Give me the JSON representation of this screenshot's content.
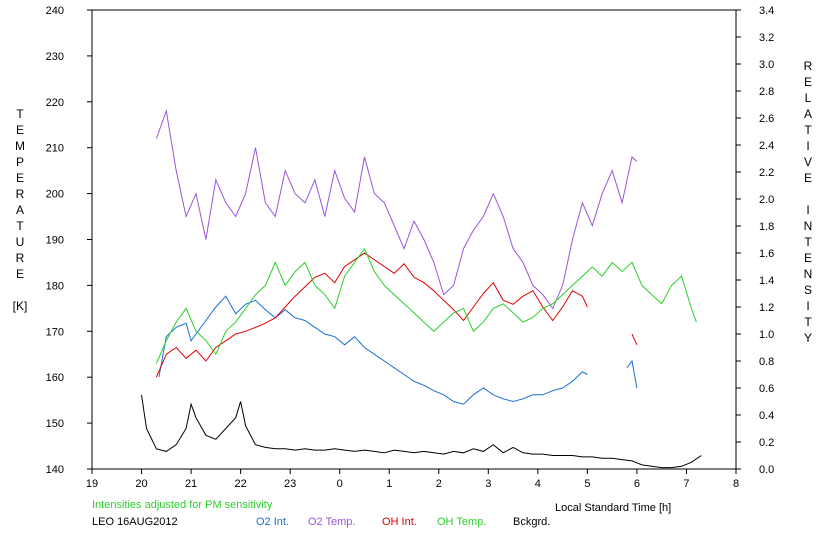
{
  "chart_data": {
    "type": "line",
    "title": "",
    "xlabel": "Local Standard Time [h]",
    "ylabel_left": [
      "T",
      "E",
      "M",
      "P",
      "E",
      "R",
      "A",
      "T",
      "U",
      "R",
      "E",
      "",
      "[K]"
    ],
    "ylabel_right": [
      "R",
      "E",
      "L",
      "A",
      "T",
      "I",
      "V",
      "E",
      "",
      "I",
      "N",
      "T",
      "E",
      "N",
      "S",
      "I",
      "T",
      "Y"
    ],
    "x_ticks": [
      "19",
      "20",
      "21",
      "22",
      "23",
      "0",
      "1",
      "2",
      "3",
      "4",
      "5",
      "6",
      "7",
      "8"
    ],
    "x_range": [
      19,
      32
    ],
    "y_left_ticks": [
      "140",
      "150",
      "160",
      "170",
      "180",
      "190",
      "200",
      "210",
      "220",
      "230",
      "240"
    ],
    "y_left_range": [
      140,
      240
    ],
    "y_right_ticks": [
      "0.0",
      "0.2",
      "0.4",
      "0.6",
      "0.8",
      "1.0",
      "1.2",
      "1.4",
      "1.6",
      "1.8",
      "2.0",
      "2.2",
      "2.4",
      "2.6",
      "2.8",
      "3.0",
      "3.2",
      "3.4"
    ],
    "y_right_range": [
      0.0,
      3.4
    ],
    "note": "Intensities adjusted for PM sensitivity",
    "station": "LEO 16AUG2012",
    "series": [
      {
        "name": "O2 Int.",
        "color": "#1a6fd6",
        "axis": "right",
        "x": [
          20.35,
          20.5,
          20.7,
          20.9,
          21.0,
          21.1,
          21.3,
          21.5,
          21.7,
          21.9,
          22.1,
          22.3,
          22.5,
          22.7,
          22.9,
          23.1,
          23.3,
          23.5,
          23.7,
          23.9,
          24.1,
          24.3,
          24.5,
          24.7,
          24.9,
          25.1,
          25.3,
          25.5,
          25.7,
          25.9,
          26.1,
          26.3,
          26.5,
          26.7,
          26.9,
          27.1,
          27.3,
          27.5,
          27.7,
          27.9,
          28.1,
          28.3,
          28.5,
          28.7,
          28.9,
          29.0
        ],
        "y": [
          0.68,
          0.98,
          1.05,
          1.08,
          0.95,
          1.0,
          1.1,
          1.2,
          1.28,
          1.15,
          1.22,
          1.25,
          1.18,
          1.12,
          1.18,
          1.12,
          1.1,
          1.05,
          1.0,
          0.98,
          0.92,
          0.98,
          0.9,
          0.85,
          0.8,
          0.75,
          0.7,
          0.65,
          0.62,
          0.58,
          0.55,
          0.5,
          0.48,
          0.55,
          0.6,
          0.55,
          0.52,
          0.5,
          0.52,
          0.55,
          0.55,
          0.58,
          0.6,
          0.65,
          0.72,
          0.7
        ]
      },
      {
        "name": "O2 Int. (late)",
        "color": "#1a6fd6",
        "axis": "right",
        "x": [
          29.8,
          29.9,
          30.0
        ],
        "y": [
          0.75,
          0.8,
          0.6
        ]
      },
      {
        "name": "O2 Temp.",
        "color": "#9b55d6",
        "axis": "left",
        "x": [
          20.3,
          20.5,
          20.7,
          20.9,
          21.1,
          21.3,
          21.5,
          21.7,
          21.9,
          22.1,
          22.3,
          22.5,
          22.7,
          22.9,
          23.1,
          23.3,
          23.5,
          23.7,
          23.9,
          24.1,
          24.3,
          24.5,
          24.7,
          24.9,
          25.1,
          25.3,
          25.5,
          25.7,
          25.9,
          26.1,
          26.3,
          26.5,
          26.7,
          26.9,
          27.1,
          27.3,
          27.5,
          27.7,
          27.9,
          28.1,
          28.3,
          28.5,
          28.7,
          28.9,
          29.1,
          29.3,
          29.5,
          29.7,
          29.9,
          30.0
        ],
        "y": [
          212,
          218,
          205,
          195,
          200,
          190,
          203,
          198,
          195,
          200,
          210,
          198,
          195,
          205,
          200,
          198,
          203,
          195,
          205,
          199,
          196,
          208,
          200,
          198,
          193,
          188,
          194,
          190,
          185,
          178,
          180,
          188,
          192,
          195,
          200,
          195,
          188,
          185,
          180,
          178,
          175,
          180,
          190,
          198,
          193,
          200,
          205,
          198,
          208,
          207
        ]
      },
      {
        "name": "OH Int.",
        "color": "#e00000",
        "axis": "right",
        "x": [
          20.3,
          20.5,
          20.7,
          20.9,
          21.1,
          21.3,
          21.5,
          21.7,
          21.9,
          22.1,
          22.3,
          22.5,
          22.7,
          22.9,
          23.1,
          23.3,
          23.5,
          23.7,
          23.9,
          24.1,
          24.3,
          24.5,
          24.7,
          24.9,
          25.1,
          25.3,
          25.5,
          25.7,
          25.9,
          26.1,
          26.3,
          26.5,
          26.7,
          26.9,
          27.1,
          27.3,
          27.5,
          27.7,
          27.9,
          28.1,
          28.3,
          28.5,
          28.7,
          28.9,
          29.0
        ],
        "y": [
          0.68,
          0.85,
          0.9,
          0.82,
          0.88,
          0.8,
          0.9,
          0.95,
          1.0,
          1.02,
          1.05,
          1.08,
          1.12,
          1.2,
          1.28,
          1.35,
          1.42,
          1.45,
          1.38,
          1.5,
          1.55,
          1.6,
          1.55,
          1.5,
          1.45,
          1.52,
          1.42,
          1.38,
          1.32,
          1.25,
          1.18,
          1.1,
          1.2,
          1.3,
          1.38,
          1.25,
          1.22,
          1.28,
          1.32,
          1.2,
          1.1,
          1.2,
          1.32,
          1.28,
          1.2
        ]
      },
      {
        "name": "OH Int. (late)",
        "color": "#e00000",
        "axis": "right",
        "x": [
          29.9,
          30.0
        ],
        "y": [
          1.0,
          0.92
        ]
      },
      {
        "name": "OH Temp.",
        "color": "#2ccf2c",
        "axis": "left",
        "x": [
          20.3,
          20.5,
          20.7,
          20.9,
          21.1,
          21.3,
          21.5,
          21.7,
          21.9,
          22.1,
          22.3,
          22.5,
          22.7,
          22.9,
          23.1,
          23.3,
          23.5,
          23.7,
          23.9,
          24.1,
          24.3,
          24.5,
          24.7,
          24.9,
          25.1,
          25.3,
          25.5,
          25.7,
          25.9,
          26.1,
          26.3,
          26.5,
          26.7,
          26.9,
          27.1,
          27.3,
          27.5,
          27.7,
          27.9,
          28.1,
          28.3,
          28.5,
          28.7,
          28.9,
          29.1,
          29.3,
          29.5,
          29.7,
          29.9,
          30.1,
          30.3,
          30.5,
          30.7,
          30.9,
          31.1,
          31.2
        ],
        "y": [
          163,
          168,
          172,
          175,
          170,
          168,
          165,
          170,
          172,
          175,
          178,
          180,
          185,
          180,
          183,
          185,
          180,
          178,
          175,
          182,
          185,
          188,
          183,
          180,
          178,
          176,
          174,
          172,
          170,
          172,
          174,
          175,
          170,
          172,
          175,
          176,
          174,
          172,
          173,
          175,
          176,
          178,
          180,
          182,
          184,
          182,
          185,
          183,
          185,
          180,
          178,
          176,
          180,
          182,
          175,
          172
        ]
      },
      {
        "name": "Bckgrd.",
        "color": "#000000",
        "axis": "right",
        "x": [
          20.0,
          20.1,
          20.3,
          20.5,
          20.7,
          20.9,
          21.0,
          21.1,
          21.3,
          21.5,
          21.7,
          21.9,
          22.0,
          22.1,
          22.3,
          22.5,
          22.7,
          22.9,
          23.1,
          23.3,
          23.5,
          23.7,
          23.9,
          24.1,
          24.3,
          24.5,
          24.7,
          24.9,
          25.1,
          25.3,
          25.5,
          25.7,
          25.9,
          26.1,
          26.3,
          26.5,
          26.7,
          26.9,
          27.1,
          27.3,
          27.5,
          27.7,
          27.9,
          28.1,
          28.3,
          28.5,
          28.7,
          28.9,
          29.1,
          29.3,
          29.5,
          29.7,
          29.9,
          30.1,
          30.3,
          30.5,
          30.7,
          30.9,
          31.1,
          31.3
        ],
        "y": [
          0.55,
          0.3,
          0.15,
          0.13,
          0.18,
          0.3,
          0.48,
          0.38,
          0.25,
          0.22,
          0.3,
          0.38,
          0.5,
          0.32,
          0.18,
          0.16,
          0.15,
          0.15,
          0.14,
          0.15,
          0.14,
          0.14,
          0.15,
          0.14,
          0.13,
          0.14,
          0.13,
          0.12,
          0.14,
          0.13,
          0.12,
          0.13,
          0.12,
          0.11,
          0.13,
          0.12,
          0.15,
          0.13,
          0.18,
          0.12,
          0.16,
          0.12,
          0.11,
          0.11,
          0.1,
          0.1,
          0.1,
          0.09,
          0.09,
          0.08,
          0.08,
          0.07,
          0.06,
          0.03,
          0.02,
          0.01,
          0.01,
          0.02,
          0.05,
          0.1
        ]
      }
    ]
  },
  "legend": {
    "o2_int": "O2 Int.",
    "o2_temp": "O2 Temp.",
    "oh_int": "OH Int.",
    "oh_temp": "OH Temp.",
    "bckgrd": "Bckgrd."
  },
  "colors": {
    "o2_int": "#1a6fd6",
    "o2_temp": "#9b55d6",
    "oh_int": "#e00000",
    "oh_temp": "#2ccf2c",
    "bckgrd": "#000000",
    "note": "#2ccf2c"
  }
}
